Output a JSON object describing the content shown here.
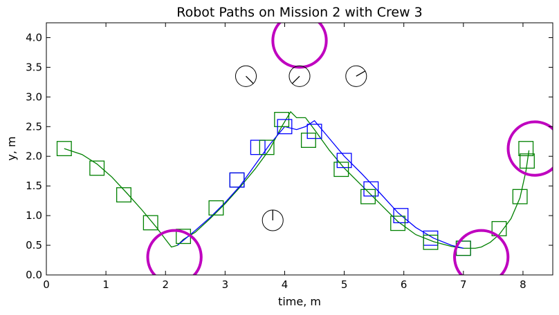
{
  "chart_data": {
    "type": "line",
    "title": "Robot Paths on Mission 2 with Crew 3",
    "xlabel": "time, m",
    "ylabel": "y, m",
    "xlim": [
      0,
      8.5
    ],
    "ylim": [
      0,
      4.25
    ],
    "xticks": [
      "0",
      "1",
      "2",
      "3",
      "4",
      "5",
      "6",
      "7",
      "8"
    ],
    "yticks": [
      "0.0",
      "0.5",
      "1.0",
      "1.5",
      "2.0",
      "2.5",
      "3.0",
      "3.5",
      "4.0"
    ],
    "grid": false,
    "legend": "none",
    "colors": {
      "series_a": "#008000",
      "series_b": "#0000ff",
      "obstacle": "#bf00bf",
      "gauge": "#000000"
    },
    "series": [
      {
        "color": "#008000",
        "points": [
          [
            0.3,
            2.13
          ],
          [
            0.6,
            2.03
          ],
          [
            0.85,
            1.87
          ],
          [
            1.1,
            1.65
          ],
          [
            1.35,
            1.38
          ],
          [
            1.6,
            1.1
          ],
          [
            1.85,
            0.8
          ],
          [
            2.0,
            0.6
          ],
          [
            2.1,
            0.47
          ],
          [
            2.2,
            0.5
          ],
          [
            2.3,
            0.6
          ],
          [
            2.5,
            0.72
          ],
          [
            2.75,
            0.95
          ],
          [
            3.0,
            1.2
          ],
          [
            3.25,
            1.48
          ],
          [
            3.5,
            1.78
          ],
          [
            3.75,
            2.12
          ],
          [
            3.95,
            2.5
          ],
          [
            4.1,
            2.75
          ],
          [
            4.2,
            2.65
          ],
          [
            4.35,
            2.65
          ],
          [
            4.5,
            2.45
          ],
          [
            4.75,
            2.1
          ],
          [
            5.0,
            1.8
          ],
          [
            5.3,
            1.5
          ],
          [
            5.6,
            1.2
          ],
          [
            5.9,
            0.9
          ],
          [
            6.2,
            0.68
          ],
          [
            6.5,
            0.56
          ],
          [
            6.8,
            0.48
          ],
          [
            7.0,
            0.45
          ],
          [
            7.2,
            0.45
          ],
          [
            7.3,
            0.47
          ],
          [
            7.45,
            0.55
          ],
          [
            7.6,
            0.68
          ],
          [
            7.8,
            0.95
          ],
          [
            7.95,
            1.3
          ],
          [
            8.05,
            1.75
          ],
          [
            8.1,
            2.1
          ]
        ]
      },
      {
        "color": "#0000ff",
        "points": [
          [
            2.2,
            0.5
          ],
          [
            2.5,
            0.75
          ],
          [
            2.75,
            0.97
          ],
          [
            3.0,
            1.22
          ],
          [
            3.25,
            1.5
          ],
          [
            3.5,
            1.85
          ],
          [
            3.75,
            2.2
          ],
          [
            4.0,
            2.5
          ],
          [
            4.2,
            2.45
          ],
          [
            4.35,
            2.5
          ],
          [
            4.5,
            2.6
          ],
          [
            4.75,
            2.3
          ],
          [
            5.0,
            2.0
          ],
          [
            5.3,
            1.7
          ],
          [
            5.6,
            1.38
          ],
          [
            5.9,
            1.05
          ],
          [
            6.2,
            0.8
          ],
          [
            6.5,
            0.62
          ],
          [
            6.8,
            0.5
          ],
          [
            7.0,
            0.45
          ]
        ]
      }
    ],
    "markers": [
      {
        "x": 0.3,
        "y": 2.13,
        "color": "#008000"
      },
      {
        "x": 0.85,
        "y": 1.8,
        "color": "#008000"
      },
      {
        "x": 1.3,
        "y": 1.35,
        "color": "#008000"
      },
      {
        "x": 1.75,
        "y": 0.88,
        "color": "#008000"
      },
      {
        "x": 2.3,
        "y": 0.65,
        "color": "#008000"
      },
      {
        "x": 2.85,
        "y": 1.13,
        "color": "#008000"
      },
      {
        "x": 3.2,
        "y": 1.6,
        "color": "#008000"
      },
      {
        "x": 3.2,
        "y": 1.6,
        "color": "#0000ff"
      },
      {
        "x": 3.55,
        "y": 2.15,
        "color": "#0000ff"
      },
      {
        "x": 3.7,
        "y": 2.15,
        "color": "#008000"
      },
      {
        "x": 3.95,
        "y": 2.62,
        "color": "#008000"
      },
      {
        "x": 4.0,
        "y": 2.5,
        "color": "#0000ff"
      },
      {
        "x": 4.5,
        "y": 2.42,
        "color": "#0000ff"
      },
      {
        "x": 4.4,
        "y": 2.27,
        "color": "#008000"
      },
      {
        "x": 5.0,
        "y": 1.93,
        "color": "#0000ff"
      },
      {
        "x": 4.95,
        "y": 1.78,
        "color": "#008000"
      },
      {
        "x": 5.45,
        "y": 1.45,
        "color": "#0000ff"
      },
      {
        "x": 5.4,
        "y": 1.32,
        "color": "#008000"
      },
      {
        "x": 5.95,
        "y": 1.0,
        "color": "#0000ff"
      },
      {
        "x": 5.9,
        "y": 0.87,
        "color": "#008000"
      },
      {
        "x": 6.45,
        "y": 0.62,
        "color": "#0000ff"
      },
      {
        "x": 6.45,
        "y": 0.55,
        "color": "#008000"
      },
      {
        "x": 7.0,
        "y": 0.45,
        "color": "#0000ff"
      },
      {
        "x": 7.0,
        "y": 0.45,
        "color": "#008000"
      },
      {
        "x": 7.6,
        "y": 0.78,
        "color": "#008000"
      },
      {
        "x": 7.95,
        "y": 1.32,
        "color": "#008000"
      },
      {
        "x": 8.07,
        "y": 1.92,
        "color": "#008000"
      },
      {
        "x": 8.05,
        "y": 2.13,
        "color": "#008000"
      }
    ],
    "obstacles": [
      {
        "x": 4.25,
        "y": 3.95
      },
      {
        "x": 2.15,
        "y": 0.3
      },
      {
        "x": 7.3,
        "y": 0.3
      },
      {
        "x": 8.2,
        "y": 2.13
      }
    ],
    "gauges": [
      {
        "x": 3.35,
        "y": 3.35,
        "angle_deg": -45
      },
      {
        "x": 4.25,
        "y": 3.35,
        "angle_deg": -135
      },
      {
        "x": 5.2,
        "y": 3.35,
        "angle_deg": 30
      },
      {
        "x": 3.8,
        "y": 0.92,
        "angle_deg": 90
      }
    ]
  }
}
